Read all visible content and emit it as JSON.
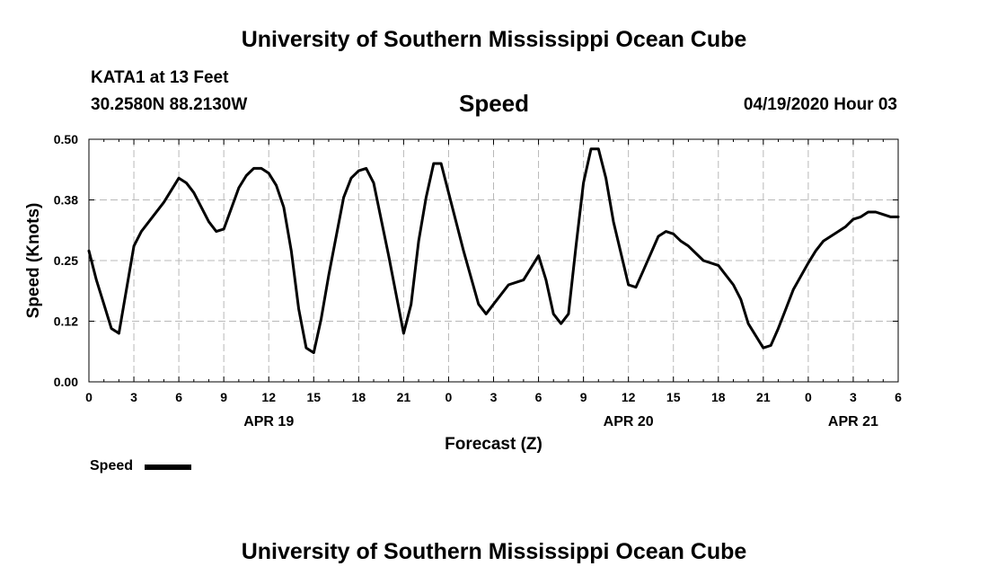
{
  "header": {
    "title": "University of Southern Mississippi Ocean Cube",
    "station": "KATA1 at 13 Feet",
    "coordinates": "30.2580N 88.2130W",
    "chart_title": "Speed",
    "timestamp": "04/19/2020 Hour 03"
  },
  "footer": {
    "title": "University of Southern Mississippi Ocean Cube"
  },
  "legend": {
    "label": "Speed",
    "color": "#000000"
  },
  "chart_data": {
    "type": "line",
    "title": "Speed",
    "xlabel": "Forecast (Z)",
    "ylabel": "Speed (Knots)",
    "xlim": [
      0,
      54
    ],
    "ylim": [
      0,
      0.5
    ],
    "x_tick_values": [
      0,
      3,
      6,
      9,
      12,
      15,
      18,
      21,
      24,
      27,
      30,
      33,
      36,
      39,
      42,
      45,
      48,
      51,
      54
    ],
    "x_tick_labels": [
      "0",
      "3",
      "6",
      "9",
      "12",
      "15",
      "18",
      "21",
      "0",
      "3",
      "6",
      "9",
      "12",
      "15",
      "18",
      "21",
      "0",
      "3",
      "6"
    ],
    "y_tick_values": [
      0,
      0.125,
      0.25,
      0.375,
      0.5
    ],
    "y_tick_labels": [
      "0.00",
      "0.12",
      "0.25",
      "0.38",
      "0.50"
    ],
    "date_labels": [
      {
        "x": 12,
        "label": "APR 19"
      },
      {
        "x": 36,
        "label": "APR 20"
      },
      {
        "x": 51,
        "label": "APR 21"
      }
    ],
    "grid": true,
    "legend_position": "bottom-left",
    "series": [
      {
        "name": "Speed",
        "color": "#000000",
        "x": [
          0,
          0.5,
          1,
          1.5,
          2,
          3,
          3.5,
          4,
          5,
          6,
          6.5,
          7,
          8,
          8.5,
          9,
          10,
          10.5,
          11,
          11.5,
          12,
          12.5,
          13,
          13.5,
          14,
          14.5,
          15,
          15.5,
          16,
          17,
          17.5,
          18,
          18.5,
          19,
          20,
          21,
          21.5,
          22,
          22.5,
          23,
          23.5,
          24,
          25,
          26,
          26.5,
          27,
          28,
          29,
          30,
          30.5,
          31,
          31.5,
          32,
          32.5,
          33,
          33.5,
          34,
          34.5,
          35,
          36,
          36.5,
          37,
          38,
          38.5,
          39,
          39.5,
          40,
          41,
          42,
          43,
          43.5,
          44,
          45,
          45.5,
          46,
          46.5,
          47,
          48,
          48.5,
          49,
          50,
          50.5,
          51,
          51.5,
          52,
          52.5,
          53,
          53.5,
          54
        ],
        "y": [
          0.27,
          0.21,
          0.16,
          0.11,
          0.1,
          0.28,
          0.31,
          0.33,
          0.37,
          0.42,
          0.41,
          0.39,
          0.33,
          0.31,
          0.315,
          0.4,
          0.425,
          0.44,
          0.44,
          0.43,
          0.405,
          0.36,
          0.27,
          0.15,
          0.07,
          0.06,
          0.13,
          0.22,
          0.38,
          0.42,
          0.435,
          0.44,
          0.41,
          0.26,
          0.1,
          0.16,
          0.29,
          0.38,
          0.45,
          0.45,
          0.39,
          0.27,
          0.16,
          0.14,
          0.16,
          0.2,
          0.21,
          0.26,
          0.21,
          0.14,
          0.12,
          0.14,
          0.28,
          0.41,
          0.48,
          0.48,
          0.42,
          0.33,
          0.2,
          0.195,
          0.23,
          0.3,
          0.31,
          0.305,
          0.29,
          0.28,
          0.25,
          0.24,
          0.2,
          0.17,
          0.12,
          0.07,
          0.075,
          0.11,
          0.15,
          0.19,
          0.245,
          0.27,
          0.29,
          0.31,
          0.32,
          0.335,
          0.34,
          0.35,
          0.35,
          0.345,
          0.34,
          0.34
        ]
      }
    ]
  }
}
